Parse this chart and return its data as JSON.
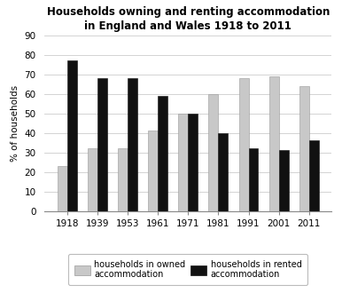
{
  "title": "Households owning and renting accommodation\nin England and Wales 1918 to 2011",
  "years": [
    "1918",
    "1939",
    "1953",
    "1961",
    "1971",
    "1981",
    "1991",
    "2001",
    "2011"
  ],
  "owned": [
    23,
    32,
    32,
    41,
    50,
    60,
    68,
    69,
    64
  ],
  "rented": [
    77,
    68,
    68,
    59,
    50,
    40,
    32,
    31,
    36
  ],
  "owned_color": "#c8c8c8",
  "rented_color": "#111111",
  "ylabel": "% of households",
  "ylim": [
    0,
    90
  ],
  "yticks": [
    0,
    10,
    20,
    30,
    40,
    50,
    60,
    70,
    80,
    90
  ],
  "bar_width": 0.32,
  "legend_owned": "households in owned\naccommodation",
  "legend_rented": "households in rented\naccommodation",
  "title_fontsize": 8.5,
  "axis_fontsize": 7.5,
  "legend_fontsize": 7.0,
  "background_color": "#ffffff"
}
